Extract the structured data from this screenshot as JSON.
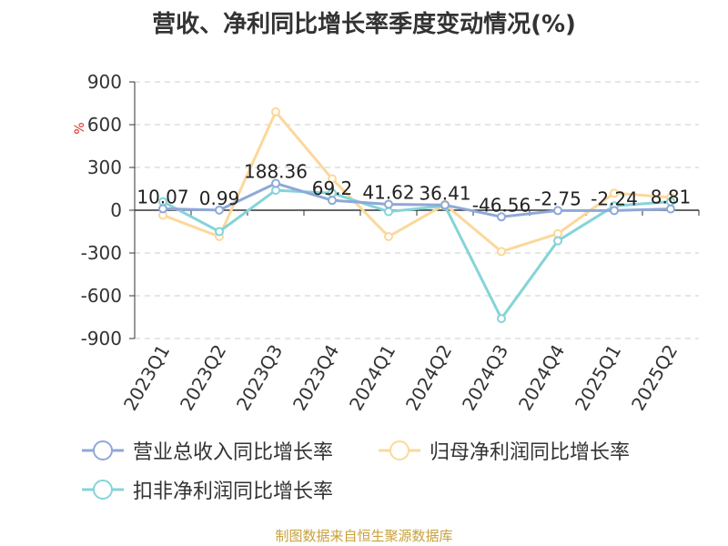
{
  "title": "营收、净利同比增长率季度变动情况(%)",
  "source": "制图数据来自恒生聚源数据库",
  "chart_data": {
    "type": "line",
    "title": "营收、净利同比增长率季度变动情况(%)",
    "ylabel": "%",
    "ylim": [
      -900,
      900
    ],
    "yticks": [
      900,
      600,
      300,
      0,
      -300,
      -600,
      -900
    ],
    "ytick_labels": [
      "900",
      "600",
      "300",
      "0",
      "-300",
      "-600",
      "-900"
    ],
    "grid": true,
    "legend_position": "bottom",
    "categories": [
      "2023Q1",
      "2023Q2",
      "2023Q3",
      "2023Q4",
      "2024Q1",
      "2024Q2",
      "2024Q3",
      "2024Q4",
      "2025Q1",
      "2025Q2"
    ],
    "series": [
      {
        "name": "营业总收入同比增长率",
        "color": "#8fa8d8",
        "values": [
          10.07,
          0.99,
          188.36,
          69.2,
          41.62,
          36.41,
          -46.56,
          -2.75,
          -2.24,
          8.81
        ],
        "labels": [
          "10.07",
          "0.99",
          "188.36",
          "69.2",
          "41.62",
          "36.41",
          "-46.56",
          "-2.75",
          "-2.24",
          "8.81"
        ]
      },
      {
        "name": "归母净利润同比增长率",
        "color": "#fbd89b",
        "values": [
          -35,
          -185,
          690,
          220,
          -185,
          40,
          -290,
          -165,
          120,
          90
        ]
      },
      {
        "name": "扣非净利润同比增长率",
        "color": "#85d4d8",
        "values": [
          60,
          -150,
          140,
          120,
          -10,
          30,
          -760,
          -215,
          30,
          60
        ]
      }
    ]
  }
}
